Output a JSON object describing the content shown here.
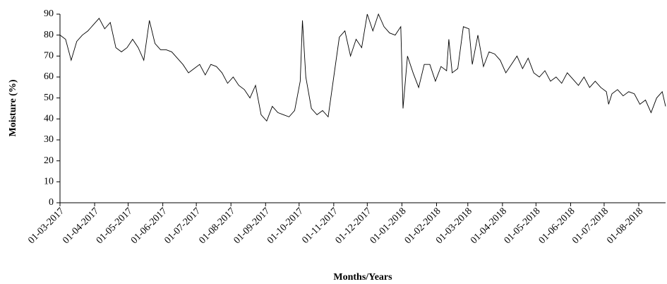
{
  "chart_data": {
    "type": "line",
    "x_label": "Months/Years",
    "y_label": "Moisture (%)",
    "color": "#000000",
    "x": [
      "01-03-2017",
      "06-03-2017",
      "11-03-2017",
      "16-03-2017",
      "21-03-2017",
      "26-03-2017",
      "31-03-2017",
      "05-04-2017",
      "10-04-2017",
      "15-04-2017",
      "20-04-2017",
      "25-04-2017",
      "30-04-2017",
      "05-05-2017",
      "10-05-2017",
      "15-05-2017",
      "20-05-2017",
      "25-05-2017",
      "30-05-2017",
      "04-06-2017",
      "09-06-2017",
      "14-06-2017",
      "19-06-2017",
      "24-06-2017",
      "29-06-2017",
      "04-07-2017",
      "09-07-2017",
      "14-07-2017",
      "19-07-2017",
      "24-07-2017",
      "29-07-2017",
      "03-08-2017",
      "08-08-2017",
      "13-08-2017",
      "18-08-2017",
      "23-08-2017",
      "28-08-2017",
      "02-09-2017",
      "07-09-2017",
      "12-09-2017",
      "17-09-2017",
      "22-09-2017",
      "27-09-2017",
      "02-10-2017",
      "04-10-2017",
      "07-10-2017",
      "12-10-2017",
      "17-10-2017",
      "22-10-2017",
      "27-10-2017",
      "01-11-2017",
      "06-11-2017",
      "11-11-2017",
      "16-11-2017",
      "21-11-2017",
      "26-11-2017",
      "01-12-2017",
      "06-12-2017",
      "11-12-2017",
      "16-12-2017",
      "21-12-2017",
      "26-12-2017",
      "31-12-2017",
      "02-01-2018",
      "06-01-2018",
      "11-01-2018",
      "16-01-2018",
      "21-01-2018",
      "26-01-2018",
      "31-01-2018",
      "05-02-2018",
      "10-02-2018",
      "12-02-2018",
      "15-02-2018",
      "20-02-2018",
      "25-02-2018",
      "02-03-2018",
      "05-03-2018",
      "10-03-2018",
      "15-03-2018",
      "20-03-2018",
      "25-03-2018",
      "30-03-2018",
      "04-04-2018",
      "09-04-2018",
      "14-04-2018",
      "19-04-2018",
      "24-04-2018",
      "29-04-2018",
      "04-05-2018",
      "09-05-2018",
      "14-05-2018",
      "19-05-2018",
      "24-05-2018",
      "29-05-2018",
      "03-06-2018",
      "08-06-2018",
      "13-06-2018",
      "18-06-2018",
      "23-06-2018",
      "28-06-2018",
      "03-07-2018",
      "05-07-2018",
      "08-07-2018",
      "13-07-2018",
      "18-07-2018",
      "23-07-2018",
      "28-07-2018",
      "02-08-2018",
      "07-08-2018",
      "12-08-2018",
      "17-08-2018",
      "22-08-2018",
      "25-08-2018"
    ],
    "values": [
      80,
      78,
      68,
      77,
      80,
      82,
      85,
      88,
      83,
      86,
      74,
      72,
      74,
      78,
      74,
      68,
      87,
      76,
      73,
      73,
      72,
      69,
      66,
      62,
      64,
      66,
      61,
      66,
      65,
      62,
      57,
      60,
      56,
      54,
      50,
      56,
      42,
      39,
      46,
      43,
      42,
      41,
      44,
      58,
      87,
      60,
      45,
      42,
      44,
      41,
      60,
      79,
      82,
      70,
      78,
      74,
      90,
      82,
      90,
      84,
      81,
      80,
      84,
      45,
      70,
      62,
      55,
      66,
      66,
      58,
      65,
      63,
      78,
      62,
      64,
      84,
      83,
      66,
      80,
      65,
      72,
      71,
      68,
      62,
      66,
      70,
      64,
      69,
      62,
      60,
      63,
      58,
      60,
      57,
      62,
      59,
      56,
      60,
      55,
      58,
      55,
      53,
      47,
      52,
      54,
      51,
      53,
      52,
      47,
      49,
      43,
      50,
      53,
      46
    ],
    "xlim": [
      "01-03-2017",
      "25-08-2018"
    ],
    "xticks": [
      "01-03-2017",
      "01-04-2017",
      "01-05-2017",
      "01-06-2017",
      "01-07-2017",
      "01-08-2017",
      "01-09-2017",
      "01-10-2017",
      "01-11-2017",
      "01-12-2017",
      "01-01-2018",
      "01-02-2018",
      "01-03-2018",
      "01-04-2018",
      "01-05-2018",
      "01-06-2018",
      "01-07-2018",
      "01-08-2018"
    ],
    "ylim": [
      0,
      90
    ],
    "yticks": [
      0,
      10,
      20,
      30,
      40,
      50,
      60,
      70,
      80,
      90
    ]
  }
}
